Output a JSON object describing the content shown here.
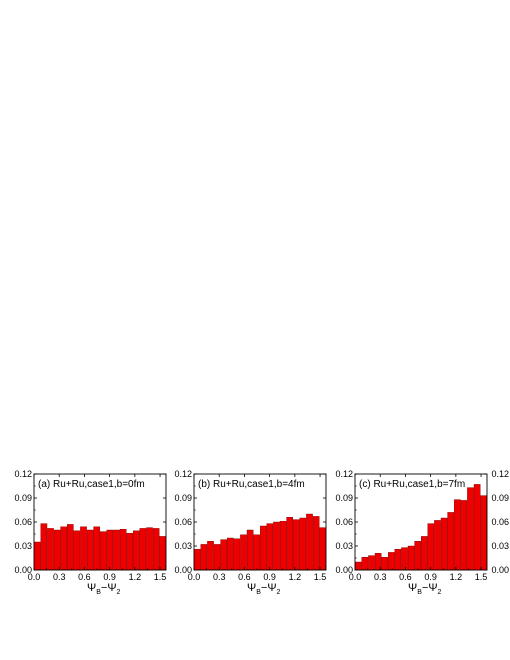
{
  "chart_data": [
    {
      "type": "bar",
      "label": "(a) Ru+Ru,case1,b=0fm",
      "xlabel": {
        "psi": "Ψ",
        "sub_a": "B",
        "minus": "−",
        "sub_b": "2"
      },
      "xlim": [
        0,
        1.5708
      ],
      "ylim": [
        0,
        0.12
      ],
      "xticks": [
        "0.0",
        "0.3",
        "0.6",
        "0.9",
        "1.2",
        "1.5"
      ],
      "yticks": [
        "0.00",
        "0.03",
        "0.06",
        "0.09",
        "0.12"
      ],
      "bar_color": "#ee0000",
      "values": [
        0.035,
        0.058,
        0.052,
        0.05,
        0.054,
        0.057,
        0.049,
        0.054,
        0.05,
        0.054,
        0.048,
        0.05,
        0.05,
        0.051,
        0.046,
        0.049,
        0.052,
        0.053,
        0.052,
        0.042
      ]
    },
    {
      "type": "bar",
      "label": "(b) Ru+Ru,case1,b=4fm",
      "xlabel": {
        "psi": "Ψ",
        "sub_a": "B",
        "minus": "−",
        "sub_b": "2"
      },
      "xlim": [
        0,
        1.5708
      ],
      "ylim": [
        0,
        0.12
      ],
      "xticks": [
        "0.0",
        "0.3",
        "0.6",
        "0.9",
        "1.2",
        "1.5"
      ],
      "yticks": [
        "0.00",
        "0.03",
        "0.06",
        "0.09",
        "0.12"
      ],
      "bar_color": "#ee0000",
      "values": [
        0.026,
        0.032,
        0.036,
        0.032,
        0.038,
        0.04,
        0.039,
        0.044,
        0.05,
        0.044,
        0.055,
        0.058,
        0.06,
        0.061,
        0.066,
        0.063,
        0.065,
        0.07,
        0.067,
        0.053
      ]
    },
    {
      "type": "bar",
      "label": "(c) Ru+Ru,case1,b=7fm",
      "xlabel": {
        "psi": "Ψ",
        "sub_a": "B",
        "minus": "−",
        "sub_b": "2"
      },
      "xlim": [
        0,
        1.5708
      ],
      "ylim": [
        0,
        0.12
      ],
      "xticks": [
        "0.0",
        "0.3",
        "0.6",
        "0.9",
        "1.2",
        "1.5"
      ],
      "yticks": [
        "0.00",
        "0.03",
        "0.06",
        "0.09",
        "0.12"
      ],
      "bar_color": "#ee0000",
      "values": [
        0.01,
        0.016,
        0.018,
        0.021,
        0.016,
        0.022,
        0.026,
        0.028,
        0.03,
        0.036,
        0.042,
        0.058,
        0.062,
        0.065,
        0.072,
        0.088,
        0.087,
        0.103,
        0.107,
        0.093
      ]
    },
    {
      "type": "bar",
      "label": "",
      "partial": true,
      "ylim": [
        0,
        0.12
      ],
      "yticks": [
        "0.00",
        "0.03",
        "0.06",
        "0.09",
        "0.12"
      ]
    }
  ]
}
